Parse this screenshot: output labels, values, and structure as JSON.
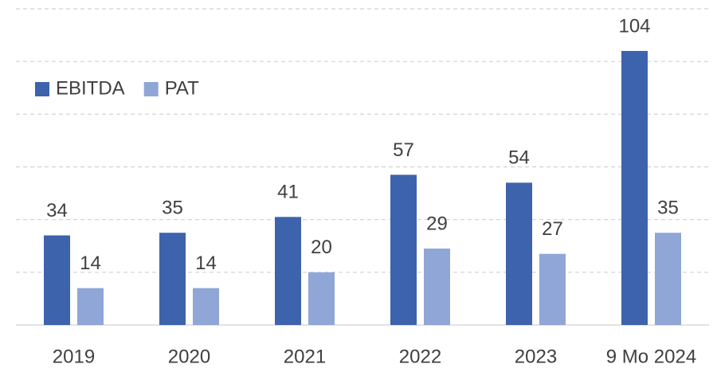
{
  "chart_data": {
    "type": "bar",
    "categories": [
      "2019",
      "2020",
      "2021",
      "2022",
      "2023",
      "9 Mo 2024"
    ],
    "series": [
      {
        "name": "EBITDA",
        "color": "#3d63ad",
        "values": [
          34,
          35,
          41,
          57,
          54,
          104
        ]
      },
      {
        "name": "PAT",
        "color": "#8fa6d6",
        "values": [
          14,
          14,
          20,
          29,
          27,
          35
        ]
      }
    ],
    "ylim": [
      0,
      120
    ],
    "yticks": [
      0,
      20,
      40,
      60,
      80,
      100,
      120
    ],
    "grid": true,
    "legend": "top-left"
  }
}
